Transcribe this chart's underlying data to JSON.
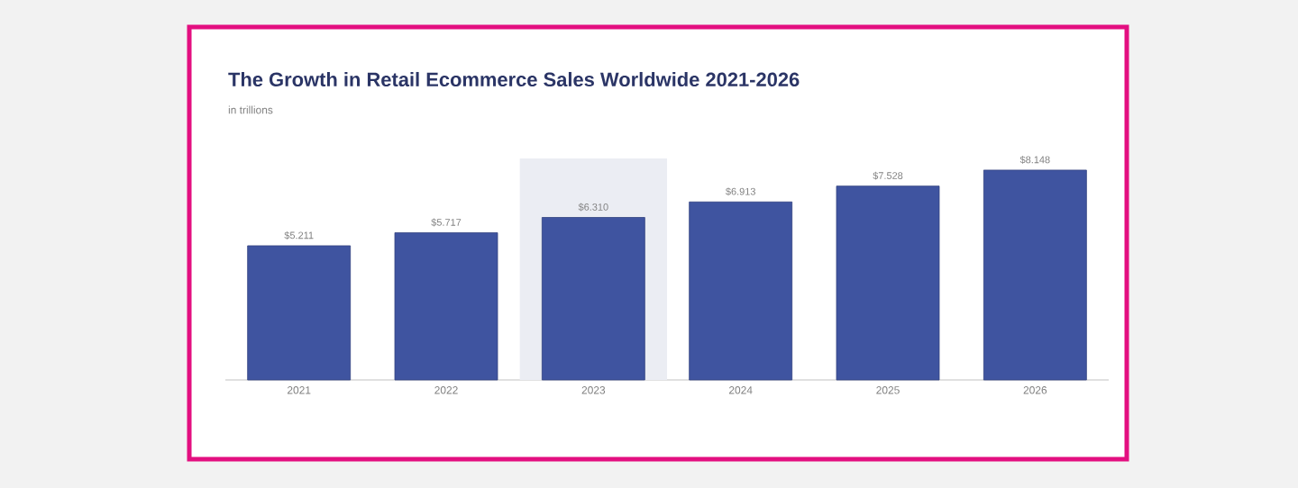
{
  "chart_data": {
    "type": "bar",
    "title": "The Growth in Retail Ecommerce Sales Worldwide 2021-2026",
    "subtitle": "in trillions",
    "categories": [
      "2021",
      "2022",
      "2023",
      "2024",
      "2025",
      "2026"
    ],
    "values": [
      5.211,
      5.717,
      6.31,
      6.913,
      7.528,
      8.148
    ],
    "value_labels": [
      "$5.211",
      "$5.717",
      "$6.310",
      "$6.913",
      "$7.528",
      "$8.148"
    ],
    "color": "#3f54a0",
    "ylim": [
      0,
      8.6
    ],
    "tick_labels": "x",
    "bands": [
      {
        "axis": "x",
        "from": "2023",
        "to": "2023",
        "color": "#ebedf3"
      }
    ]
  }
}
